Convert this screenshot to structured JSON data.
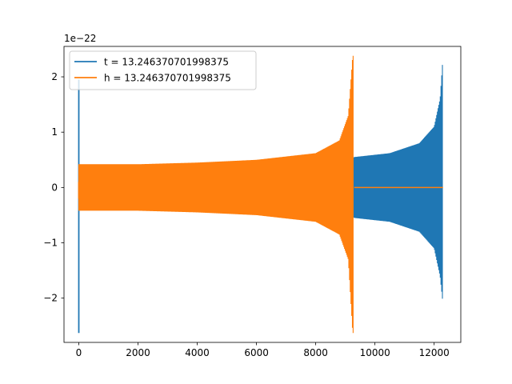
{
  "chart_data": {
    "type": "line",
    "title": "",
    "xlabel": "",
    "ylabel": "",
    "y_offset_text": "1e−22",
    "xlim": [
      -500,
      12900
    ],
    "ylim": [
      -2.8,
      2.55
    ],
    "xticks": [
      0,
      2000,
      4000,
      6000,
      8000,
      10000,
      12000
    ],
    "xtick_labels": [
      "0",
      "2000",
      "4000",
      "6000",
      "8000",
      "10000",
      "12000"
    ],
    "yticks": [
      2,
      1,
      0,
      -1,
      -2
    ],
    "ytick_labels": [
      "2",
      "1",
      "0",
      "−1",
      "−2"
    ],
    "grid": false,
    "legend_position": "top-left",
    "series": [
      {
        "name": "t = 13.246370701998375",
        "color": "#1f77b4",
        "spike_x": 0,
        "spike_range": [
          -2.63,
          1.95
        ],
        "envelope_x": [
          0,
          2000,
          4000,
          6000,
          8000,
          9300,
          10500,
          11500,
          12000,
          12200,
          12300
        ],
        "envelope_upper": [
          0.0,
          0.0,
          0.0,
          0.0,
          0.0,
          0.55,
          0.62,
          0.8,
          1.1,
          1.6,
          2.38
        ],
        "envelope_lower": [
          0.0,
          0.0,
          0.0,
          0.0,
          0.0,
          -0.55,
          -0.62,
          -0.8,
          -1.1,
          -1.6,
          -2.12
        ],
        "flat_x": [
          0,
          9300
        ],
        "flat_y": 0.0
      },
      {
        "name": "h = 13.246370701998375",
        "color": "#ff7f0e",
        "spike_x": 0,
        "spike_range": [
          -0.2,
          0.1
        ],
        "envelope_x": [
          0,
          2000,
          4000,
          6000,
          8000,
          8800,
          9100,
          9250,
          9280
        ],
        "envelope_upper": [
          0.42,
          0.42,
          0.45,
          0.5,
          0.62,
          0.85,
          1.3,
          2.38,
          2.38
        ],
        "envelope_lower": [
          -0.42,
          -0.42,
          -0.45,
          -0.5,
          -0.62,
          -0.85,
          -1.3,
          -2.63,
          -2.63
        ],
        "flat_x": [
          9300,
          12300
        ],
        "flat_y": 0.0
      }
    ]
  }
}
